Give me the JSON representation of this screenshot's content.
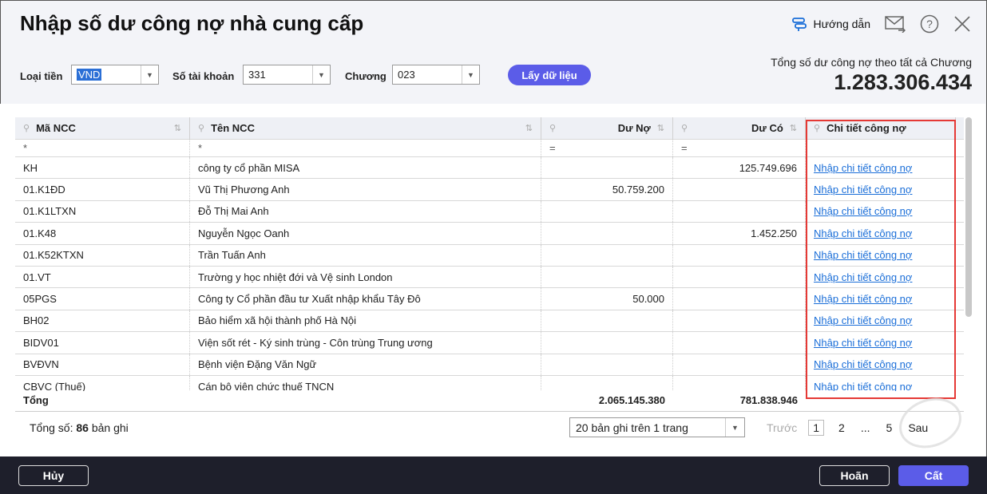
{
  "title": "Nhập số dư công nợ nhà cung cấp",
  "header": {
    "guide_label": "Hướng dẫn"
  },
  "filters": {
    "currency_label": "Loại tiền",
    "currency_value": "VND",
    "account_label": "Số tài khoản",
    "account_value": "331",
    "chapter_label": "Chương",
    "chapter_value": "023",
    "fetch_button": "Lấy dữ liệu"
  },
  "summary": {
    "label": "Tổng số dư công nợ theo tất cả Chương",
    "value": "1.283.306.434"
  },
  "table": {
    "columns": [
      "Mã NCC",
      "Tên NCC",
      "Dư Nợ",
      "Dư Có",
      "Chi tiết công nợ"
    ],
    "filters": [
      "*",
      "*",
      "=",
      "=",
      ""
    ],
    "rows": [
      {
        "code": "KH",
        "name": "công ty cổ phần MISA",
        "debit": "",
        "credit": "125.749.696",
        "link": "Nhập chi tiết công nợ"
      },
      {
        "code": "01.K1ĐD",
        "name": "Vũ Thị Phương Anh",
        "debit": "50.759.200",
        "credit": "",
        "link": "Nhập chi tiết công nợ"
      },
      {
        "code": "01.K1LTXN",
        "name": "Đỗ Thị Mai Anh",
        "debit": "",
        "credit": "",
        "link": "Nhập chi tiết công nợ"
      },
      {
        "code": "01.K48",
        "name": "Nguyễn Ngọc Oanh",
        "debit": "",
        "credit": "1.452.250",
        "link": "Nhập chi tiết công nợ"
      },
      {
        "code": "01.K52KTXN",
        "name": "Trần Tuấn Anh",
        "debit": "",
        "credit": "",
        "link": "Nhập chi tiết công nợ"
      },
      {
        "code": "01.VT",
        "name": "Trường y học nhiệt đới và Vệ sinh London",
        "debit": "",
        "credit": "",
        "link": "Nhập chi tiết công nợ"
      },
      {
        "code": "05PGS",
        "name": "Công ty Cổ phần đầu tư Xuất nhập khẩu Tây Đô",
        "debit": "50.000",
        "credit": "",
        "link": "Nhập chi tiết công nợ"
      },
      {
        "code": "BH02",
        "name": "Bảo hiểm xã hội thành phố Hà Nội",
        "debit": "",
        "credit": "",
        "link": "Nhập chi tiết công nợ"
      },
      {
        "code": "BIDV01",
        "name": "Viện sốt rét - Ký sinh trùng - Côn trùng Trung ương",
        "debit": "",
        "credit": "",
        "link": "Nhập chi tiết công nợ"
      },
      {
        "code": "BVĐVN",
        "name": "Bệnh viện Đặng Văn Ngữ",
        "debit": "",
        "credit": "",
        "link": "Nhập chi tiết công nợ"
      },
      {
        "code": "CBVC (Thuế)",
        "name": "Cán bộ viên chức thuế TNCN",
        "debit": "",
        "credit": "",
        "link": "Nhập chi tiết công nợ"
      }
    ],
    "total": {
      "label": "Tổng",
      "debit": "2.065.145.380",
      "credit": "781.838.946"
    }
  },
  "paging": {
    "count_prefix": "Tổng số:",
    "count": "86",
    "count_suffix": "bản ghi",
    "page_size": "20 bản ghi trên 1 trang",
    "prev": "Trước",
    "pages": [
      "1",
      "2",
      "...",
      "5"
    ],
    "next": "Sau"
  },
  "watermark": "DỮ LIỆU MẪU",
  "footer": {
    "cancel": "Hủy",
    "undo": "Hoãn",
    "save": "Cất"
  },
  "colors": {
    "accent": "#5b5ce8",
    "link": "#1a6ed8",
    "highlight": "#e53935",
    "footer": "#1e1f2b"
  }
}
